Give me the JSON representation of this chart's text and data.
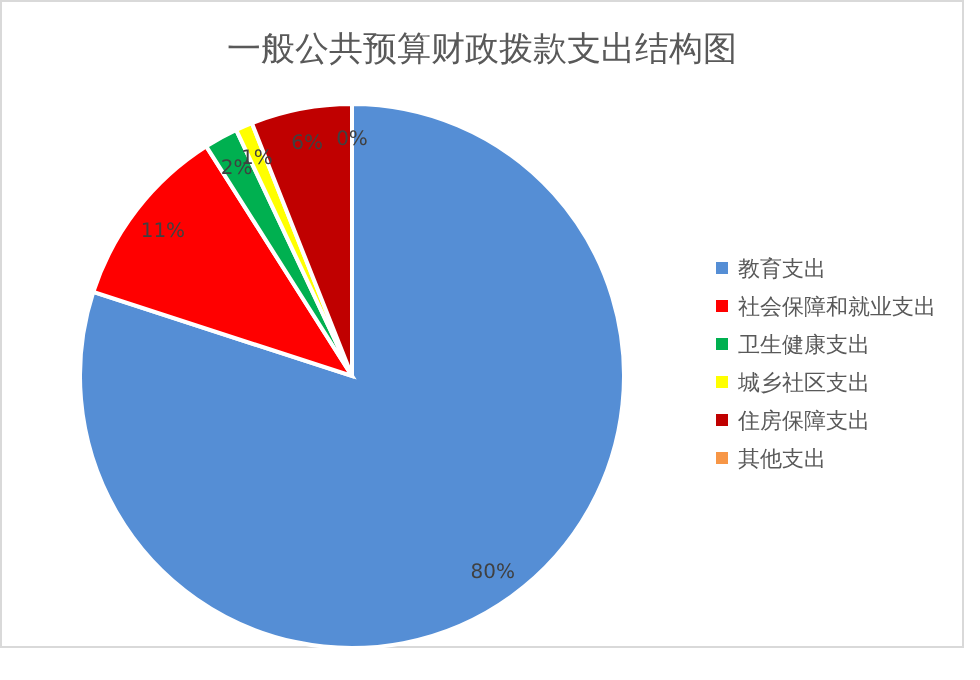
{
  "chart_data": {
    "type": "pie",
    "title": "一般公共预算财政拨款支出结构图",
    "categories": [
      "教育支出",
      "社会保障和就业支出",
      "卫生健康支出",
      "城乡社区支出",
      "住房保障支出",
      "其他支出"
    ],
    "values": [
      80,
      11,
      2,
      1,
      6,
      0
    ],
    "colors": [
      "#558ed5",
      "#ff0000",
      "#00b050",
      "#ffff00",
      "#c00000",
      "#f79646"
    ],
    "value_labels": [
      "80%",
      "11%",
      "2%",
      "1%",
      "6%",
      "0%"
    ],
    "legend": "right"
  }
}
